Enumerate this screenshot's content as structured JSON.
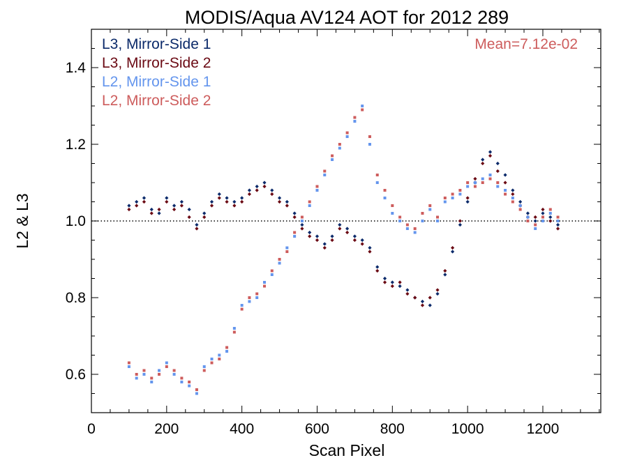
{
  "chart_data": {
    "type": "scatter",
    "title": "MODIS/Aqua AV124 AOT for 2012 289",
    "xlabel": "Scan Pixel",
    "ylabel": "L2 & L3",
    "xlim": [
      0,
      1354
    ],
    "ylim": [
      0.5,
      1.5
    ],
    "x_ticks": [
      0,
      200,
      400,
      600,
      800,
      1000,
      1200
    ],
    "y_ticks": [
      0.6,
      0.8,
      1.0,
      1.2,
      1.4
    ],
    "x_tick_labels": [
      "0",
      "200",
      "400",
      "600",
      "800",
      "1000",
      "1200"
    ],
    "y_tick_labels": [
      "0.6",
      "0.8",
      "1.0",
      "1.2",
      "1.4"
    ],
    "reference_line": {
      "y": 1.0,
      "style": "dotted"
    },
    "annotation": {
      "text": "Mean=7.12e-02",
      "color": "#cd5c5c"
    },
    "grid": false,
    "legend_position": "top-left",
    "series": [
      {
        "name": "L3, Mirror-Side 1",
        "color": "#0b2a6a",
        "marker": "diamond",
        "points": [
          [
            100,
            1.04
          ],
          [
            120,
            1.05
          ],
          [
            140,
            1.06
          ],
          [
            160,
            1.03
          ],
          [
            180,
            1.02
          ],
          [
            200,
            1.06
          ],
          [
            220,
            1.04
          ],
          [
            240,
            1.05
          ],
          [
            260,
            1.03
          ],
          [
            280,
            0.99
          ],
          [
            300,
            1.02
          ],
          [
            320,
            1.05
          ],
          [
            340,
            1.07
          ],
          [
            360,
            1.06
          ],
          [
            380,
            1.05
          ],
          [
            400,
            1.06
          ],
          [
            420,
            1.08
          ],
          [
            440,
            1.09
          ],
          [
            460,
            1.1
          ],
          [
            480,
            1.08
          ],
          [
            500,
            1.06
          ],
          [
            520,
            1.05
          ],
          [
            540,
            1.02
          ],
          [
            560,
            0.99
          ],
          [
            580,
            0.97
          ],
          [
            600,
            0.96
          ],
          [
            620,
            0.94
          ],
          [
            640,
            0.96
          ],
          [
            660,
            0.99
          ],
          [
            680,
            0.98
          ],
          [
            700,
            0.96
          ],
          [
            720,
            0.95
          ],
          [
            740,
            0.93
          ],
          [
            760,
            0.88
          ],
          [
            780,
            0.85
          ],
          [
            800,
            0.84
          ],
          [
            820,
            0.83
          ],
          [
            840,
            0.82
          ],
          [
            860,
            0.8
          ],
          [
            880,
            0.79
          ],
          [
            900,
            0.78
          ],
          [
            920,
            0.81
          ],
          [
            940,
            0.86
          ],
          [
            960,
            0.92
          ],
          [
            980,
            0.99
          ],
          [
            1000,
            1.05
          ],
          [
            1020,
            1.1
          ],
          [
            1040,
            1.16
          ],
          [
            1060,
            1.18
          ],
          [
            1080,
            1.15
          ],
          [
            1100,
            1.12
          ],
          [
            1120,
            1.08
          ],
          [
            1140,
            1.05
          ],
          [
            1160,
            1.02
          ],
          [
            1180,
            1.0
          ],
          [
            1200,
            1.02
          ],
          [
            1220,
            1.01
          ],
          [
            1240,
            0.99
          ]
        ]
      },
      {
        "name": "L3, Mirror-Side 2",
        "color": "#6b0a14",
        "marker": "diamond",
        "points": [
          [
            100,
            1.03
          ],
          [
            120,
            1.04
          ],
          [
            140,
            1.05
          ],
          [
            160,
            1.02
          ],
          [
            180,
            1.03
          ],
          [
            200,
            1.05
          ],
          [
            220,
            1.03
          ],
          [
            240,
            1.04
          ],
          [
            260,
            1.01
          ],
          [
            280,
            0.98
          ],
          [
            300,
            1.01
          ],
          [
            320,
            1.04
          ],
          [
            340,
            1.06
          ],
          [
            360,
            1.05
          ],
          [
            380,
            1.04
          ],
          [
            400,
            1.05
          ],
          [
            420,
            1.07
          ],
          [
            440,
            1.08
          ],
          [
            460,
            1.09
          ],
          [
            480,
            1.07
          ],
          [
            500,
            1.05
          ],
          [
            520,
            1.04
          ],
          [
            540,
            1.01
          ],
          [
            560,
            0.98
          ],
          [
            580,
            0.96
          ],
          [
            600,
            0.95
          ],
          [
            620,
            0.93
          ],
          [
            640,
            0.95
          ],
          [
            660,
            0.98
          ],
          [
            680,
            0.97
          ],
          [
            700,
            0.95
          ],
          [
            720,
            0.94
          ],
          [
            740,
            0.92
          ],
          [
            760,
            0.87
          ],
          [
            780,
            0.84
          ],
          [
            800,
            0.83
          ],
          [
            820,
            0.84
          ],
          [
            840,
            0.81
          ],
          [
            860,
            0.8
          ],
          [
            880,
            0.78
          ],
          [
            900,
            0.8
          ],
          [
            920,
            0.82
          ],
          [
            940,
            0.87
          ],
          [
            960,
            0.93
          ],
          [
            980,
            1.0
          ],
          [
            1000,
            1.06
          ],
          [
            1020,
            1.11
          ],
          [
            1040,
            1.15
          ],
          [
            1060,
            1.17
          ],
          [
            1080,
            1.13
          ],
          [
            1100,
            1.1
          ],
          [
            1120,
            1.07
          ],
          [
            1140,
            1.04
          ],
          [
            1160,
            1.01
          ],
          [
            1180,
            1.01
          ],
          [
            1200,
            1.03
          ],
          [
            1220,
            1.0
          ],
          [
            1240,
            0.98
          ]
        ]
      },
      {
        "name": "L2, Mirror-Side 1",
        "color": "#6495ed",
        "marker": "square",
        "points": [
          [
            100,
            0.62
          ],
          [
            120,
            0.59
          ],
          [
            140,
            0.6
          ],
          [
            160,
            0.58
          ],
          [
            180,
            0.61
          ],
          [
            200,
            0.63
          ],
          [
            220,
            0.6
          ],
          [
            240,
            0.58
          ],
          [
            260,
            0.57
          ],
          [
            280,
            0.55
          ],
          [
            300,
            0.62
          ],
          [
            320,
            0.64
          ],
          [
            340,
            0.65
          ],
          [
            360,
            0.66
          ],
          [
            380,
            0.72
          ],
          [
            400,
            0.78
          ],
          [
            420,
            0.79
          ],
          [
            440,
            0.8
          ],
          [
            460,
            0.84
          ],
          [
            480,
            0.86
          ],
          [
            500,
            0.89
          ],
          [
            520,
            0.93
          ],
          [
            540,
            0.96
          ],
          [
            560,
            1.0
          ],
          [
            580,
            1.04
          ],
          [
            600,
            1.08
          ],
          [
            620,
            1.12
          ],
          [
            640,
            1.16
          ],
          [
            660,
            1.19
          ],
          [
            680,
            1.22
          ],
          [
            700,
            1.26
          ],
          [
            720,
            1.3
          ],
          [
            740,
            1.2
          ],
          [
            760,
            1.1
          ],
          [
            780,
            1.06
          ],
          [
            800,
            1.02
          ],
          [
            820,
            1.0
          ],
          [
            840,
            0.98
          ],
          [
            860,
            0.97
          ],
          [
            880,
            1.0
          ],
          [
            900,
            1.03
          ],
          [
            920,
            1.0
          ],
          [
            940,
            1.05
          ],
          [
            960,
            1.06
          ],
          [
            980,
            1.07
          ],
          [
            1000,
            1.09
          ],
          [
            1020,
            1.1
          ],
          [
            1040,
            1.11
          ],
          [
            1060,
            1.12
          ],
          [
            1080,
            1.09
          ],
          [
            1100,
            1.08
          ],
          [
            1120,
            1.06
          ],
          [
            1140,
            1.04
          ],
          [
            1160,
            1.01
          ],
          [
            1180,
            0.98
          ],
          [
            1200,
            1.0
          ],
          [
            1220,
            1.02
          ],
          [
            1240,
            1.0
          ]
        ]
      },
      {
        "name": "L2, Mirror-Side 2",
        "color": "#cd5c5c",
        "marker": "square",
        "points": [
          [
            100,
            0.63
          ],
          [
            120,
            0.6
          ],
          [
            140,
            0.61
          ],
          [
            160,
            0.59
          ],
          [
            180,
            0.6
          ],
          [
            200,
            0.62
          ],
          [
            220,
            0.61
          ],
          [
            240,
            0.59
          ],
          [
            260,
            0.58
          ],
          [
            280,
            0.56
          ],
          [
            300,
            0.61
          ],
          [
            320,
            0.63
          ],
          [
            340,
            0.64
          ],
          [
            360,
            0.67
          ],
          [
            380,
            0.71
          ],
          [
            400,
            0.77
          ],
          [
            420,
            0.8
          ],
          [
            440,
            0.81
          ],
          [
            460,
            0.83
          ],
          [
            480,
            0.87
          ],
          [
            500,
            0.9
          ],
          [
            520,
            0.92
          ],
          [
            540,
            0.97
          ],
          [
            560,
            1.01
          ],
          [
            580,
            1.05
          ],
          [
            600,
            1.09
          ],
          [
            620,
            1.13
          ],
          [
            640,
            1.17
          ],
          [
            660,
            1.2
          ],
          [
            680,
            1.23
          ],
          [
            700,
            1.27
          ],
          [
            720,
            1.29
          ],
          [
            740,
            1.22
          ],
          [
            760,
            1.12
          ],
          [
            780,
            1.08
          ],
          [
            800,
            1.04
          ],
          [
            820,
            1.01
          ],
          [
            840,
            0.99
          ],
          [
            860,
            0.98
          ],
          [
            880,
            1.02
          ],
          [
            900,
            1.04
          ],
          [
            920,
            1.01
          ],
          [
            940,
            1.06
          ],
          [
            960,
            1.07
          ],
          [
            980,
            1.08
          ],
          [
            1000,
            1.1
          ],
          [
            1020,
            1.09
          ],
          [
            1040,
            1.1
          ],
          [
            1060,
            1.11
          ],
          [
            1080,
            1.1
          ],
          [
            1100,
            1.07
          ],
          [
            1120,
            1.05
          ],
          [
            1140,
            1.03
          ],
          [
            1160,
            1.0
          ],
          [
            1180,
            0.99
          ],
          [
            1200,
            1.01
          ],
          [
            1220,
            1.03
          ],
          [
            1240,
            1.01
          ]
        ]
      }
    ]
  }
}
